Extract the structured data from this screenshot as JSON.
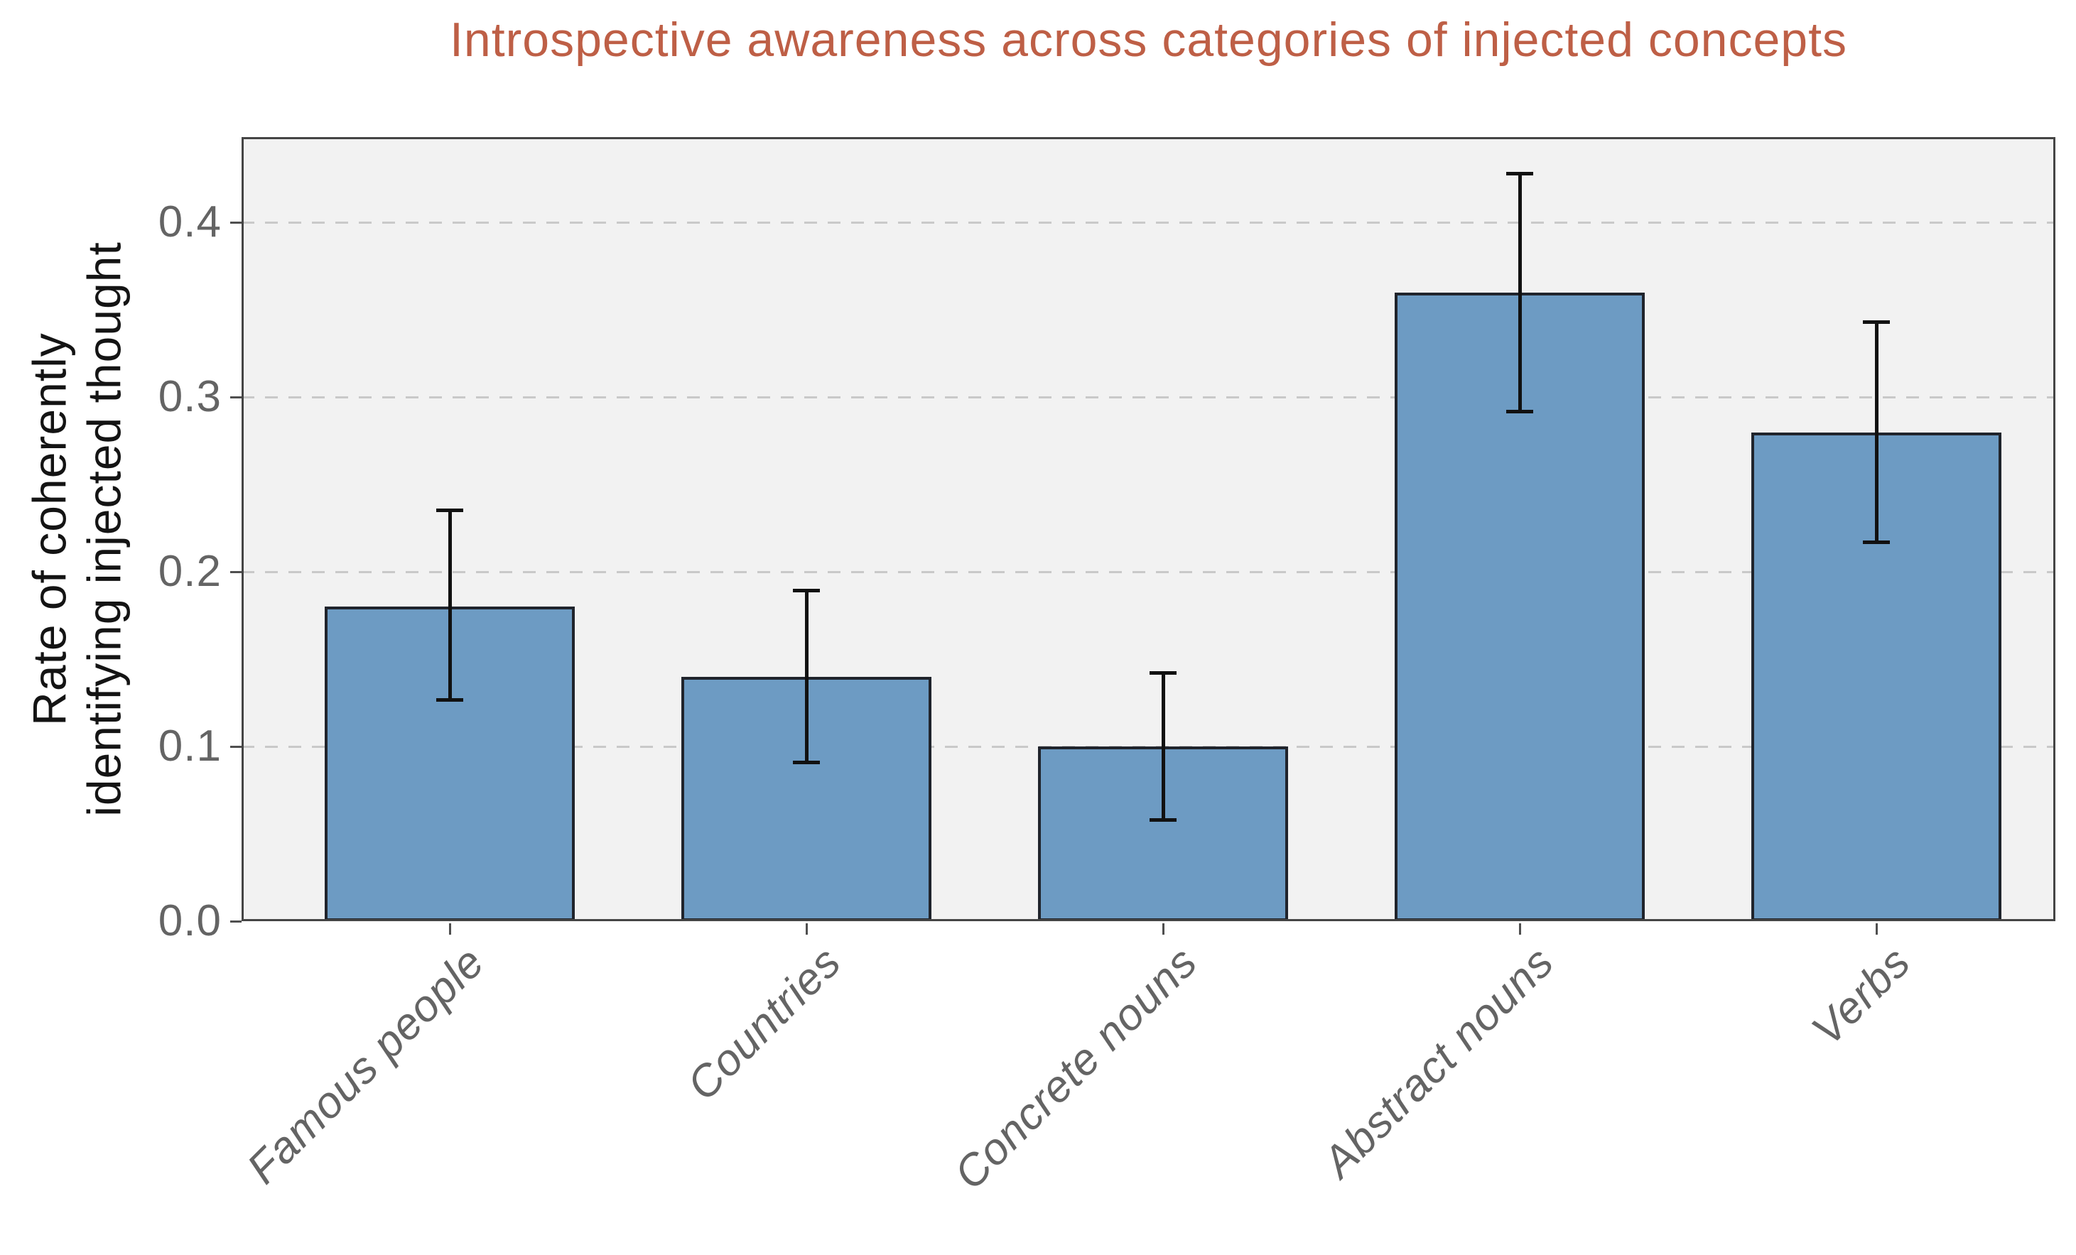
{
  "figure": {
    "background": "#ffffff",
    "plot_background": "#f2f2f2",
    "grid_color": "#c9c9c9",
    "spine_color": "#454545",
    "tick_mark_color": "#4f4f4f",
    "tick_label_color": "#646464",
    "axis_label_color": "#141414",
    "title_color": "#be5f46"
  },
  "chart_data": {
    "type": "bar",
    "title": "Introspective awareness across categories of injected concepts",
    "ylabel": "Rate of coherently\nidentifying injected thought",
    "xlabel": "",
    "categories": [
      "Famous people",
      "Countries",
      "Concrete nouns",
      "Abstract nouns",
      "Verbs"
    ],
    "values": [
      0.18,
      0.14,
      0.1,
      0.36,
      0.28
    ],
    "error_low": [
      0.127,
      0.091,
      0.058,
      0.292,
      0.217
    ],
    "error_high": [
      0.235,
      0.189,
      0.142,
      0.428,
      0.343
    ],
    "ytick_labels": [
      "0.0",
      "0.1",
      "0.2",
      "0.3",
      "0.4"
    ],
    "ytick_values": [
      0.0,
      0.1,
      0.2,
      0.3,
      0.4
    ],
    "ylim": [
      0,
      0.449
    ],
    "grid": "horizontal-dashed",
    "legend": "none",
    "bar_color": "#6d9bc3",
    "bar_edge_color": "#20242c",
    "error_bar_color": "#111111"
  }
}
